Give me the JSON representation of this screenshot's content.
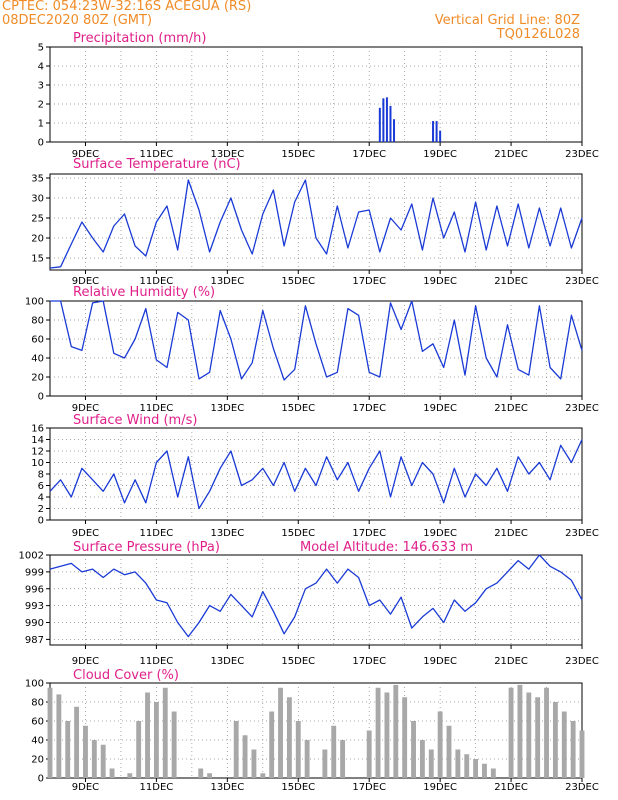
{
  "header": {
    "station": "CPTEC:  054:23W-32:16S  ACEGUA (RS)",
    "date": "08DEC2020 80Z (GMT)",
    "vertical_grid": "Vertical Grid Line: 80Z",
    "run_code": "TQ0126L028"
  },
  "colors": {
    "header": "#f08c28",
    "title": "#e0208a",
    "series": "#1a3ad6",
    "cloud": "#a8a8a8",
    "grid": "#888888"
  },
  "chart_data": [
    {
      "type": "bar",
      "title": "Precipitation (mm/h)",
      "x": [
        17.3,
        17.4,
        17.5,
        17.6,
        17.7,
        18.8,
        18.9,
        19.0
      ],
      "values": [
        1.8,
        2.3,
        2.35,
        1.9,
        1.2,
        1.1,
        1.1,
        0.6
      ],
      "ylim": [
        0,
        5
      ],
      "yticks": [
        "0",
        "1",
        "2",
        "3",
        "4",
        "5"
      ],
      "xticks": [
        "9DEC",
        "11DEC",
        "13DEC",
        "15DEC",
        "17DEC",
        "19DEC",
        "21DEC",
        "23DEC"
      ]
    },
    {
      "type": "line",
      "title": "Surface Temperature (nC)",
      "x": [
        8.0,
        8.3,
        8.6,
        8.9,
        9.2,
        9.5,
        9.8,
        10.1,
        10.4,
        10.7,
        11.0,
        11.3,
        11.6,
        11.9,
        12.2,
        12.5,
        12.8,
        13.1,
        13.4,
        13.7,
        14.0,
        14.3,
        14.6,
        14.9,
        15.2,
        15.5,
        15.8,
        16.1,
        16.4,
        16.7,
        17.0,
        17.3,
        17.6,
        17.9,
        18.2,
        18.5,
        18.8,
        19.1,
        19.4,
        19.7,
        20.0,
        20.3,
        20.6,
        20.9,
        21.2,
        21.5,
        21.8,
        22.1,
        22.4,
        22.7,
        23.0
      ],
      "values": [
        12.5,
        12.8,
        18.5,
        24,
        20,
        16.5,
        23,
        26,
        18,
        15.5,
        24,
        28,
        17,
        34.5,
        27,
        16.5,
        24,
        30,
        22,
        16,
        26,
        32,
        18,
        29,
        34.5,
        20,
        16,
        28,
        17.5,
        26.5,
        27,
        16.5,
        25,
        22,
        28.5,
        17,
        30,
        20,
        26.5,
        16.5,
        29,
        17,
        28,
        18,
        28.5,
        17.5,
        27.5,
        18,
        27.5,
        17.5,
        25
      ],
      "ylim": [
        12,
        36
      ],
      "yticks": [
        "15",
        "20",
        "25",
        "30",
        "35"
      ],
      "xticks": [
        "9DEC",
        "11DEC",
        "13DEC",
        "15DEC",
        "17DEC",
        "19DEC",
        "21DEC",
        "23DEC"
      ]
    },
    {
      "type": "line",
      "title": "Relative Humidity (%)",
      "x": [
        8.0,
        8.3,
        8.6,
        8.9,
        9.2,
        9.5,
        9.8,
        10.1,
        10.4,
        10.7,
        11.0,
        11.3,
        11.6,
        11.9,
        12.2,
        12.5,
        12.8,
        13.1,
        13.4,
        13.7,
        14.0,
        14.3,
        14.6,
        14.9,
        15.2,
        15.5,
        15.8,
        16.1,
        16.4,
        16.7,
        17.0,
        17.3,
        17.6,
        17.9,
        18.2,
        18.5,
        18.8,
        19.1,
        19.4,
        19.7,
        20.0,
        20.3,
        20.6,
        20.9,
        21.2,
        21.5,
        21.8,
        22.1,
        22.4,
        22.7,
        23.0
      ],
      "values": [
        100,
        100,
        52,
        48,
        98,
        100,
        45,
        40,
        60,
        92,
        38,
        30,
        88,
        80,
        18,
        25,
        90,
        60,
        18,
        35,
        90,
        50,
        17,
        28,
        95,
        55,
        20,
        25,
        92,
        85,
        25,
        20,
        98,
        70,
        100,
        47,
        55,
        30,
        80,
        22,
        95,
        40,
        20,
        75,
        28,
        22,
        95,
        30,
        18,
        85,
        48
      ],
      "ylim": [
        0,
        100
      ],
      "yticks": [
        "0",
        "20",
        "40",
        "60",
        "80",
        "100"
      ],
      "xticks": [
        "9DEC",
        "11DEC",
        "13DEC",
        "15DEC",
        "17DEC",
        "19DEC",
        "21DEC",
        "23DEC"
      ]
    },
    {
      "type": "line",
      "title": "Surface Wind (m/s)",
      "x": [
        8.0,
        8.3,
        8.6,
        8.9,
        9.2,
        9.5,
        9.8,
        10.1,
        10.4,
        10.7,
        11.0,
        11.3,
        11.6,
        11.9,
        12.2,
        12.5,
        12.8,
        13.1,
        13.4,
        13.7,
        14.0,
        14.3,
        14.6,
        14.9,
        15.2,
        15.5,
        15.8,
        16.1,
        16.4,
        16.7,
        17.0,
        17.3,
        17.6,
        17.9,
        18.2,
        18.5,
        18.8,
        19.1,
        19.4,
        19.7,
        20.0,
        20.3,
        20.6,
        20.9,
        21.2,
        21.5,
        21.8,
        22.1,
        22.4,
        22.7,
        23.0
      ],
      "values": [
        5,
        7,
        4,
        9,
        7,
        5,
        8,
        3,
        7,
        3,
        10,
        12,
        4,
        11,
        2,
        5,
        9,
        12,
        6,
        7,
        9,
        6,
        10,
        5,
        9,
        6,
        11,
        7,
        10,
        5,
        9,
        12,
        4,
        11,
        6,
        10,
        8,
        3,
        9,
        4,
        8,
        6,
        9,
        5,
        11,
        8,
        10,
        7,
        13,
        10,
        14
      ],
      "ylim": [
        0,
        16
      ],
      "yticks": [
        "0",
        "2",
        "4",
        "6",
        "8",
        "10",
        "12",
        "14",
        "16"
      ],
      "xticks": [
        "9DEC",
        "11DEC",
        "13DEC",
        "15DEC",
        "17DEC",
        "19DEC",
        "21DEC",
        "23DEC"
      ]
    },
    {
      "type": "line",
      "title": "Surface Pressure (hPa)",
      "annotation": "Model Altitude: 146.633 m",
      "x": [
        8.0,
        8.3,
        8.6,
        8.9,
        9.2,
        9.5,
        9.8,
        10.1,
        10.4,
        10.7,
        11.0,
        11.3,
        11.6,
        11.9,
        12.2,
        12.5,
        12.8,
        13.1,
        13.4,
        13.7,
        14.0,
        14.3,
        14.6,
        14.9,
        15.2,
        15.5,
        15.8,
        16.1,
        16.4,
        16.7,
        17.0,
        17.3,
        17.6,
        17.9,
        18.2,
        18.5,
        18.8,
        19.1,
        19.4,
        19.7,
        20.0,
        20.3,
        20.6,
        20.9,
        21.2,
        21.5,
        21.8,
        22.1,
        22.4,
        22.7,
        23.0
      ],
      "values": [
        999.5,
        1000,
        1000.5,
        999,
        999.5,
        998,
        999.5,
        998.5,
        999,
        997,
        994,
        993.5,
        990,
        987.5,
        990,
        993,
        992,
        995,
        993,
        991,
        995.5,
        992,
        988,
        991,
        996,
        997,
        999.5,
        997,
        999.5,
        998,
        993,
        994,
        991.5,
        994.5,
        989,
        991,
        992.5,
        990,
        994,
        992,
        993.5,
        996,
        997,
        999,
        1001,
        999.5,
        1002,
        1000,
        999,
        997.5,
        994
      ],
      "ylim": [
        986,
        1002
      ],
      "yticks": [
        "987",
        "990",
        "993",
        "996",
        "999",
        "1002"
      ],
      "xticks": [
        "9DEC",
        "11DEC",
        "13DEC",
        "15DEC",
        "17DEC",
        "19DEC",
        "21DEC",
        "23DEC"
      ]
    },
    {
      "type": "bar",
      "title": "Cloud Cover (%)",
      "x": [
        8.0,
        8.25,
        8.5,
        8.75,
        9.0,
        9.25,
        9.5,
        9.75,
        10.0,
        10.25,
        10.5,
        10.75,
        11.0,
        11.25,
        11.5,
        11.75,
        12.0,
        12.25,
        12.5,
        12.75,
        13.0,
        13.25,
        13.5,
        13.75,
        14.0,
        14.25,
        14.5,
        14.75,
        15.0,
        15.25,
        15.5,
        15.75,
        16.0,
        16.25,
        16.5,
        16.75,
        17.0,
        17.25,
        17.5,
        17.75,
        18.0,
        18.25,
        18.5,
        18.75,
        19.0,
        19.25,
        19.5,
        19.75,
        20.0,
        20.25,
        20.5,
        20.75,
        21.0,
        21.25,
        21.5,
        21.75,
        22.0,
        22.25,
        22.5,
        22.75,
        23.0
      ],
      "values": [
        95,
        88,
        60,
        75,
        55,
        40,
        35,
        10,
        0,
        5,
        60,
        90,
        80,
        95,
        70,
        0,
        0,
        10,
        5,
        0,
        0,
        60,
        45,
        30,
        5,
        70,
        95,
        85,
        60,
        40,
        0,
        30,
        55,
        40,
        0,
        0,
        50,
        95,
        90,
        98,
        85,
        60,
        40,
        30,
        70,
        55,
        30,
        25,
        20,
        15,
        10,
        0,
        95,
        98,
        90,
        85,
        95,
        80,
        70,
        60,
        50
      ],
      "ylim": [
        0,
        100
      ],
      "yticks": [
        "0",
        "20",
        "40",
        "60",
        "80",
        "100"
      ],
      "xticks": [
        "9DEC",
        "11DEC",
        "13DEC",
        "15DEC",
        "17DEC",
        "19DEC",
        "21DEC",
        "23DEC"
      ]
    }
  ]
}
